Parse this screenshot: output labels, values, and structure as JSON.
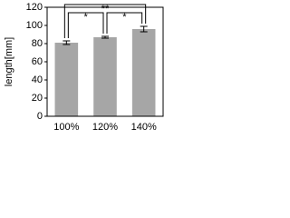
{
  "chart_data": {
    "type": "bar",
    "ylabel": "length[mm]",
    "categories": [
      "100%",
      "120%",
      "140%"
    ],
    "values": [
      81,
      87,
      96
    ],
    "errors": [
      2,
      1,
      3
    ],
    "color": "#a6a6a6",
    "ylim": [
      0,
      120
    ],
    "yticks": [
      0,
      20,
      40,
      60,
      80,
      100,
      120
    ],
    "significance": [
      {
        "label": "*",
        "pair": [
          0,
          1
        ]
      },
      {
        "label": "**",
        "pair": [
          0,
          2
        ]
      },
      {
        "label": "*",
        "pair": [
          1,
          2
        ]
      }
    ]
  }
}
